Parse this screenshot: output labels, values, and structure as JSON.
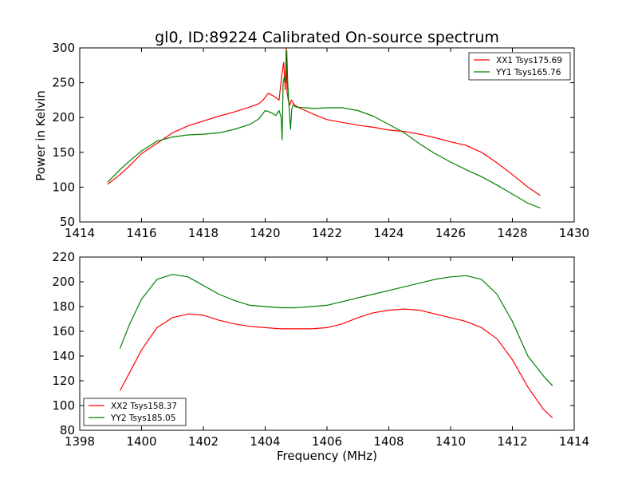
{
  "chart_data": [
    {
      "type": "line",
      "title": "gl0, ID:89224 Calibrated On-source spectrum",
      "ylabel": "Power in Kelvin",
      "xlabel": "",
      "xlim": [
        1414,
        1430
      ],
      "ylim": [
        50,
        300
      ],
      "xticks": [
        1414,
        1416,
        1418,
        1420,
        1422,
        1424,
        1426,
        1428,
        1430
      ],
      "yticks": [
        50,
        100,
        150,
        200,
        250,
        300
      ],
      "legend_position": "top-right",
      "grid": false,
      "series": [
        {
          "name": "XX1 Tsys175.69",
          "color": "#ff0000",
          "x": [
            1414.9,
            1415.3,
            1415.6,
            1416.0,
            1416.5,
            1417.0,
            1417.5,
            1418.0,
            1418.5,
            1419.0,
            1419.5,
            1419.8,
            1419.95,
            1420.1,
            1420.3,
            1420.45,
            1420.55,
            1420.6,
            1420.65,
            1420.68,
            1420.71,
            1420.75,
            1420.8,
            1420.85,
            1420.95,
            1421.1,
            1421.3,
            1421.6,
            1422.0,
            1422.5,
            1423.0,
            1423.5,
            1424.0,
            1424.5,
            1425.0,
            1425.5,
            1426.0,
            1426.5,
            1427.0,
            1427.5,
            1428.0,
            1428.5,
            1428.9
          ],
          "y": [
            104,
            118,
            130,
            148,
            163,
            178,
            188,
            195,
            202,
            208,
            215,
            220,
            226,
            235,
            230,
            225,
            265,
            279,
            240,
            300,
            236,
            224,
            218,
            225,
            218,
            214,
            210,
            204,
            197,
            193,
            189,
            186,
            182,
            180,
            176,
            171,
            165,
            160,
            150,
            135,
            118,
            100,
            88
          ]
        },
        {
          "name": "YY1 Tsys165.76",
          "color": "#008000",
          "x": [
            1414.9,
            1415.3,
            1415.6,
            1416.0,
            1416.5,
            1417.0,
            1417.5,
            1418.0,
            1418.5,
            1419.0,
            1419.5,
            1419.8,
            1420.0,
            1420.2,
            1420.35,
            1420.45,
            1420.52,
            1420.55,
            1420.58,
            1420.62,
            1420.67,
            1420.7,
            1420.73,
            1420.78,
            1420.82,
            1420.86,
            1420.9,
            1421.0,
            1421.3,
            1421.6,
            1422.0,
            1422.5,
            1423.0,
            1423.5,
            1424.0,
            1424.5,
            1425.0,
            1425.5,
            1426.0,
            1426.5,
            1427.0,
            1427.5,
            1428.0,
            1428.5,
            1428.9
          ],
          "y": [
            107,
            125,
            137,
            152,
            166,
            172,
            175,
            176,
            178,
            183,
            190,
            198,
            210,
            207,
            203,
            210,
            200,
            168,
            250,
            258,
            250,
            296,
            250,
            210,
            183,
            212,
            218,
            215,
            214,
            213,
            214,
            214,
            210,
            202,
            190,
            178,
            162,
            148,
            136,
            125,
            115,
            103,
            90,
            77,
            70
          ]
        }
      ]
    },
    {
      "type": "line",
      "title": "",
      "xlabel": "Frequency (MHz)",
      "ylabel": "",
      "xlim": [
        1398,
        1414
      ],
      "ylim": [
        80,
        220
      ],
      "xticks": [
        1398,
        1400,
        1402,
        1404,
        1406,
        1408,
        1410,
        1412,
        1414
      ],
      "yticks": [
        80,
        100,
        120,
        140,
        160,
        180,
        200,
        220
      ],
      "legend_position": "bottom-left",
      "grid": false,
      "series": [
        {
          "name": "XX2 Tsys158.37",
          "color": "#ff0000",
          "x": [
            1399.3,
            1399.6,
            1400.0,
            1400.5,
            1401.0,
            1401.5,
            1402.0,
            1402.5,
            1403.0,
            1403.5,
            1404.0,
            1404.5,
            1405.0,
            1405.5,
            1406.0,
            1406.5,
            1407.0,
            1407.5,
            1408.0,
            1408.5,
            1409.0,
            1409.5,
            1410.0,
            1410.5,
            1411.0,
            1411.5,
            1412.0,
            1412.5,
            1413.0,
            1413.3
          ],
          "y": [
            112,
            126,
            145,
            163,
            171,
            174,
            173,
            169,
            166,
            164,
            163,
            162,
            162,
            162,
            163,
            166,
            171,
            175,
            177,
            178,
            177,
            174,
            171,
            168,
            163,
            154,
            137,
            115,
            97,
            90
          ]
        },
        {
          "name": "YY2 Tsys185.05",
          "color": "#008000",
          "x": [
            1399.3,
            1399.6,
            1400.0,
            1400.5,
            1401.0,
            1401.5,
            1402.0,
            1402.5,
            1403.0,
            1403.5,
            1404.0,
            1404.5,
            1405.0,
            1405.5,
            1406.0,
            1406.5,
            1407.0,
            1407.5,
            1408.0,
            1408.5,
            1409.0,
            1409.5,
            1410.0,
            1410.5,
            1411.0,
            1411.5,
            1412.0,
            1412.5,
            1413.0,
            1413.3
          ],
          "y": [
            146,
            165,
            186,
            202,
            206,
            204,
            197,
            190,
            185,
            181,
            180,
            179,
            179,
            180,
            181,
            184,
            187,
            190,
            193,
            196,
            199,
            202,
            204,
            205,
            202,
            190,
            168,
            140,
            124,
            116
          ]
        }
      ]
    }
  ]
}
